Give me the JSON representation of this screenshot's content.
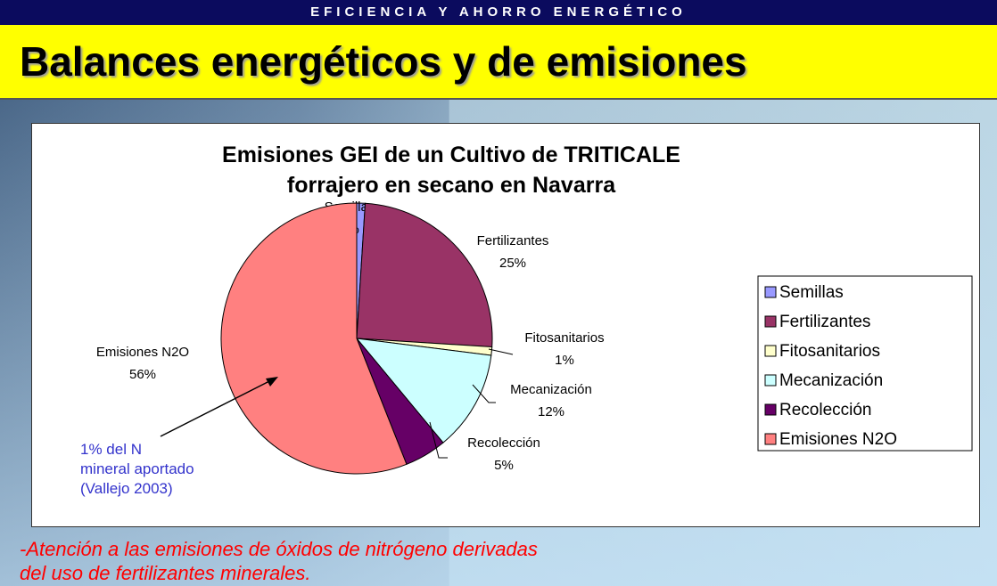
{
  "header": {
    "banner": "EFICIENCIA Y AHORRO ENERGÉTICO",
    "title": "Balances energéticos y de emisiones"
  },
  "chart_data": {
    "type": "pie",
    "title": "Emisiones GEI de un Cultivo de TRITICALE forrajero en secano en Navarra",
    "categories": [
      "Semillas",
      "Fertilizantes",
      "Fitosanitarios",
      "Mecanización",
      "Recolección",
      "Emisiones N2O"
    ],
    "values": [
      1,
      25,
      1,
      12,
      5,
      56
    ],
    "value_labels": [
      "1%",
      "25%",
      "1%",
      "12%",
      "5%",
      "56%"
    ],
    "colors": [
      "#9999ff",
      "#993366",
      "#ffffcc",
      "#ccffff",
      "#660066",
      "#ff8080"
    ],
    "legend": "right",
    "annotation": [
      "1% del N",
      "mineral aportado",
      "(Vallejo 2003)"
    ]
  },
  "footer": [
    "-Atención a las emisiones de óxidos de nitrógeno derivadas",
    "del uso de fertilizantes minerales."
  ]
}
